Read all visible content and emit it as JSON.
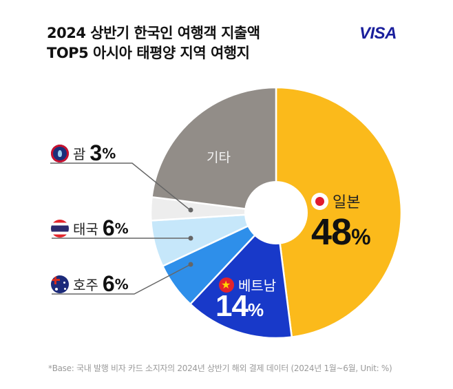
{
  "header": {
    "title_line1": "2024 상반기 한국인 여행객 지출액",
    "title_line2": "TOP5 아시아 태평양 지역 여행지",
    "logo": "VISA"
  },
  "labels": {
    "guam": {
      "name": "괌",
      "value": "3",
      "unit": "%",
      "flag_icon": "guam-flag-icon"
    },
    "thailand": {
      "name": "태국",
      "value": "6",
      "unit": "%",
      "flag_icon": "thailand-flag-icon"
    },
    "australia": {
      "name": "호주",
      "value": "6",
      "unit": "%",
      "flag_icon": "australia-flag-icon"
    },
    "japan": {
      "name": "일본",
      "value": "48",
      "unit": "%",
      "flag_icon": "japan-flag-icon"
    },
    "vietnam": {
      "name": "베트남",
      "value": "14",
      "unit": "%",
      "flag_icon": "vietnam-flag-icon"
    },
    "other": {
      "name": "기타"
    }
  },
  "footnote": "*Base: 국내 발행 비자 카드 소지자의 2024년 상반기 해외 결제 데이터 (2024년 1월~6월, Unit: %)",
  "colors": {
    "japan": "#FBBA1B",
    "vietnam": "#1839C9",
    "australia": "#2E8FEA",
    "thailand": "#C6E7FA",
    "guam": "#EDEDED",
    "other": "#928D88",
    "visa": "#1A1F9C"
  },
  "chart_data": {
    "type": "pie",
    "title": "2024 상반기 한국인 여행객 지출액 TOP5 아시아 태평양 지역 여행지",
    "donut": true,
    "start_angle": "top, clockwise",
    "categories": [
      "일본",
      "베트남",
      "호주",
      "태국",
      "괌",
      "기타"
    ],
    "values": [
      48,
      14,
      6,
      6,
      3,
      23
    ],
    "unit": "%",
    "colors": [
      "#FBBA1B",
      "#1839C9",
      "#2E8FEA",
      "#C6E7FA",
      "#EDEDED",
      "#928D88"
    ],
    "annotations": [
      "일본 48%",
      "베트남 14%",
      "호주 6%",
      "태국 6%",
      "괌 3%",
      "기타"
    ],
    "note": "*Base: 국내 발행 비자 카드 소지자의 2024년 상반기 해외 결제 데이터 (2024년 1월~6월, Unit: %)"
  }
}
